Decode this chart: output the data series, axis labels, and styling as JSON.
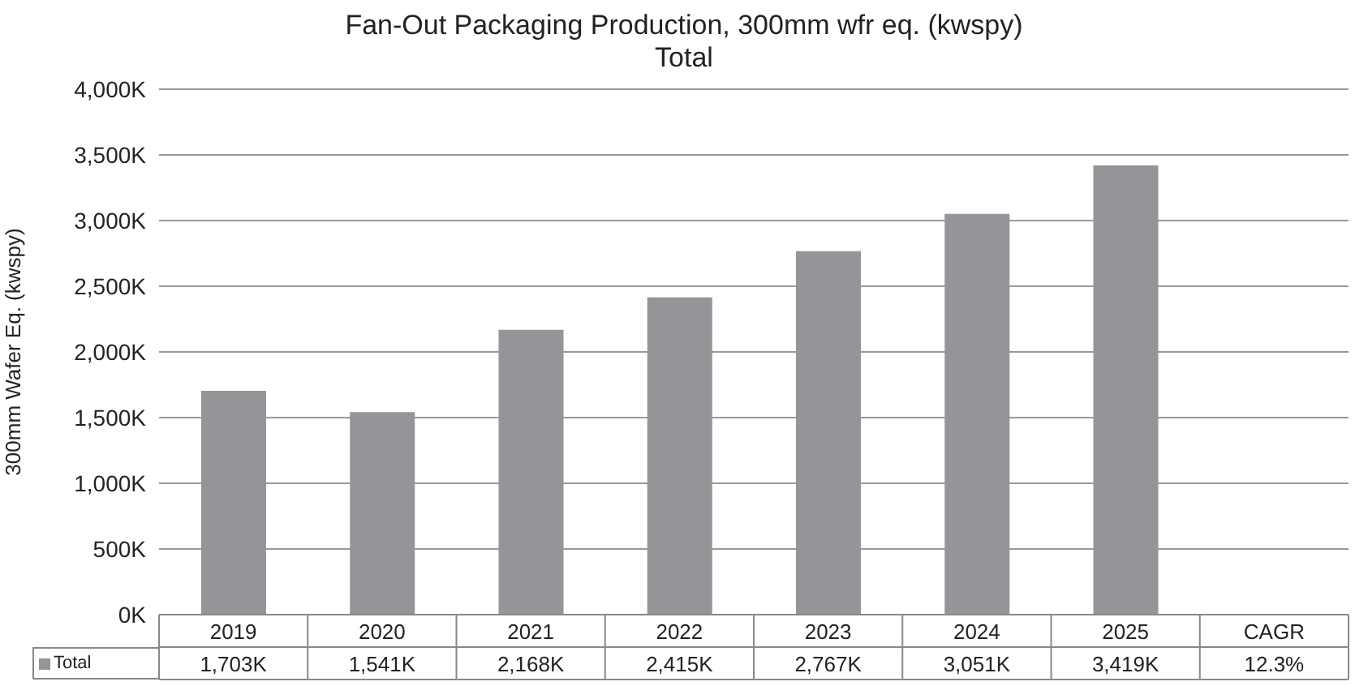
{
  "chart_data": {
    "type": "bar",
    "title": "Fan-Out Packaging Production, 300mm wfr eq. (kwspy)",
    "subtitle": "Total",
    "ylabel": "300mm Wafer Eq. (kwspy)",
    "categories": [
      "2019",
      "2020",
      "2021",
      "2022",
      "2023",
      "2024",
      "2025",
      "CAGR"
    ],
    "series": [
      {
        "name": "Total",
        "color": "#939598",
        "values": [
          1703,
          1541,
          2168,
          2415,
          2767,
          3051,
          3419,
          null
        ],
        "value_labels": [
          "1,703K",
          "1,541K",
          "2,168K",
          "2,415K",
          "2,767K",
          "3,051K",
          "3,419K",
          "12.3%"
        ]
      }
    ],
    "ylim": [
      0,
      4000
    ],
    "yticks": [
      {
        "value": 0,
        "label": "0K"
      },
      {
        "value": 500,
        "label": "500K"
      },
      {
        "value": 1000,
        "label": "1,000K"
      },
      {
        "value": 1500,
        "label": "1,500K"
      },
      {
        "value": 2000,
        "label": "2,000K"
      },
      {
        "value": 2500,
        "label": "2,500K"
      },
      {
        "value": 3000,
        "label": "3,000K"
      },
      {
        "value": 3500,
        "label": "3,500K"
      },
      {
        "value": 4000,
        "label": "4,000K"
      }
    ],
    "grid": "y"
  }
}
